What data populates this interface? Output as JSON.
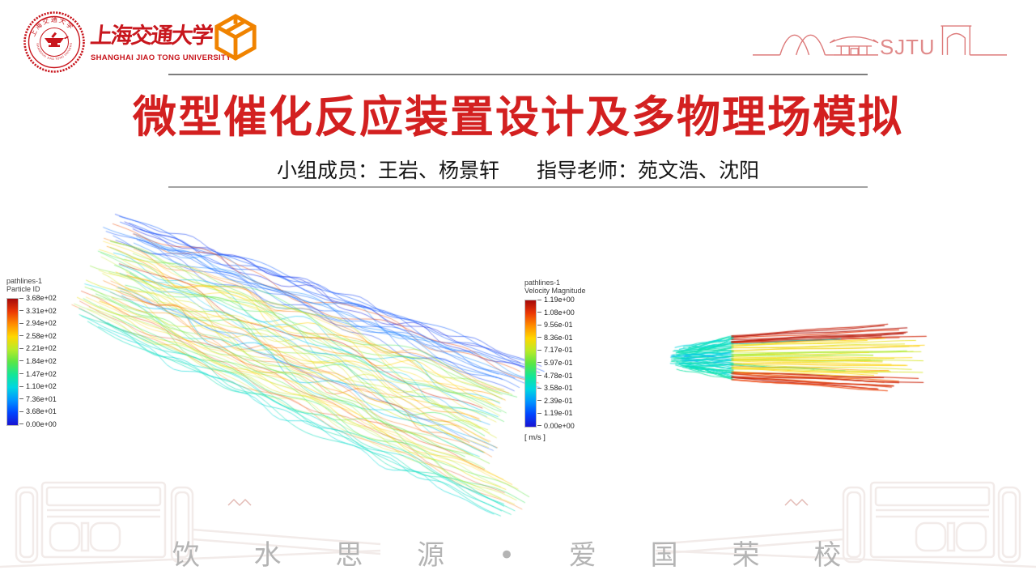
{
  "colors": {
    "title_red": "#d32020",
    "sjtu_red": "#c8161d",
    "cube_orange": "#f08300",
    "skyline_red": "#dd7a7a",
    "motto_gray": "#b4b4b4"
  },
  "header": {
    "university_cn": "上海交通大学",
    "university_en": "SHANGHAI JIAO TONG UNIVERSITY",
    "skyline_label": "SJTU"
  },
  "title": {
    "text": "微型催化反应装置设计及多物理场模拟"
  },
  "subtitle": {
    "members": "小组成员：王岩、杨景轩",
    "advisors": "指导老师：苑文浩、沈阳"
  },
  "figures": [
    {
      "name": "particle-id-pathlines",
      "legend_line1": "pathlines-1",
      "legend_line2": "Particle ID",
      "ticks": [
        "3.68e+02",
        "3.31e+02",
        "2.94e+02",
        "2.58e+02",
        "2.21e+02",
        "1.84e+02",
        "1.47e+02",
        "1.10e+02",
        "7.36e+01",
        "3.68e+01",
        "0.00e+00"
      ],
      "unit": ""
    },
    {
      "name": "velocity-magnitude-pathlines",
      "legend_line1": "pathlines-1",
      "legend_line2": "Velocity Magnitude",
      "ticks": [
        "1.19e+00",
        "1.08e+00",
        "9.56e-01",
        "8.36e-01",
        "7.17e-01",
        "5.97e-01",
        "4.78e-01",
        "3.58e-01",
        "2.39e-01",
        "1.19e-01",
        "0.00e+00"
      ],
      "unit": "[ m/s ]"
    }
  ],
  "footer": {
    "motto": "饮 水 思 源 • 爱 国 荣 校"
  }
}
